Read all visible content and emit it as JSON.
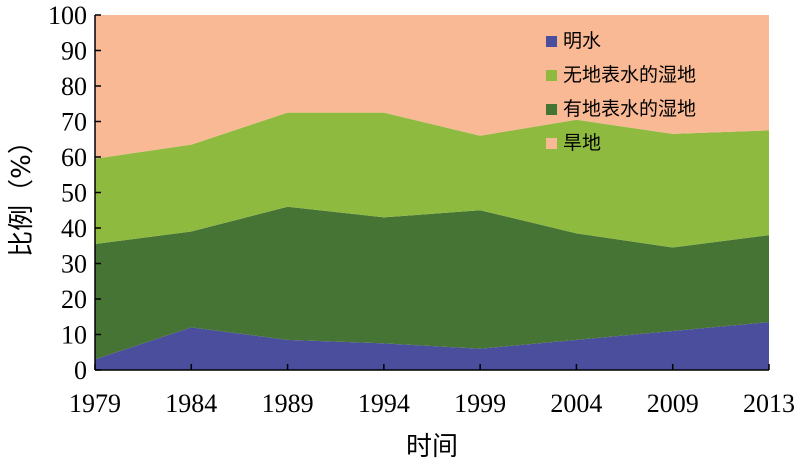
{
  "chart_data": {
    "type": "area",
    "stacked": true,
    "x": [
      "1979",
      "1984",
      "1989",
      "1994",
      "1999",
      "2004",
      "2009",
      "2013"
    ],
    "xlabel": "时间",
    "ylabel": "比例（%）",
    "ylim": [
      0,
      100
    ],
    "yticks": [
      "0",
      "10",
      "20",
      "30",
      "40",
      "50",
      "60",
      "70",
      "80",
      "90",
      "100"
    ],
    "legend_position": "top-right",
    "series": [
      {
        "name": "明水",
        "color": "#4a4e9c",
        "values": [
          3,
          12,
          8.5,
          7.5,
          6,
          8.5,
          11,
          13.5
        ]
      },
      {
        "name": "有地表水的湿地",
        "color": "#467434",
        "values": [
          32.5,
          27,
          37.5,
          35.5,
          39,
          30,
          23.5,
          24.5
        ]
      },
      {
        "name": "无地表水的湿地",
        "color": "#8fba40",
        "values": [
          24,
          24.5,
          26.5,
          29.5,
          21,
          32,
          32,
          29.5
        ]
      },
      {
        "name": "旱地",
        "color": "#f9b995",
        "values": [
          40.5,
          36.5,
          27.5,
          27.5,
          34,
          29.5,
          33.5,
          32.5
        ]
      }
    ],
    "legend_order": [
      "明水",
      "无地表水的湿地",
      "有地表水的湿地",
      "旱地"
    ]
  }
}
